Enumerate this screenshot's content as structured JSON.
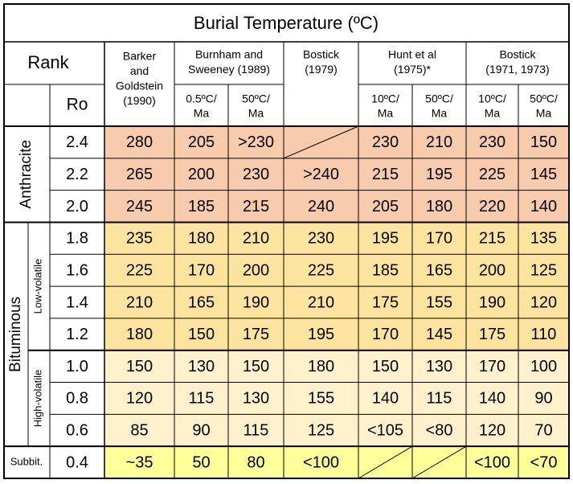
{
  "title": "Burial Temperature (ºC)",
  "header": {
    "rank": "Rank",
    "ro": "Ro",
    "columns": [
      {
        "lines": [
          "Barker",
          "and",
          "Goldstein",
          "(1990)"
        ],
        "sub": []
      },
      {
        "lines": [
          "Burnham and",
          "Sweeney (1989)"
        ],
        "sub": [
          [
            "0.5ºC/",
            "Ma"
          ],
          [
            "50ºC/",
            "Ma"
          ]
        ]
      },
      {
        "lines": [
          "Bostick",
          "(1979)"
        ],
        "sub": []
      },
      {
        "lines": [
          "Hunt et al",
          "(1975)*"
        ],
        "sub": [
          [
            "10ºC/",
            "Ma"
          ],
          [
            "50ºC/",
            "Ma"
          ]
        ]
      },
      {
        "lines": [
          "Bostick",
          "(1971, 1973)"
        ],
        "sub": [
          [
            "10ºC/",
            "Ma"
          ],
          [
            "50ºC/",
            "Ma"
          ]
        ]
      }
    ]
  },
  "row_groups": [
    "Anthracite",
    "Bituminous",
    "Low-volatile",
    "High-volatile",
    "Subbit."
  ],
  "rows": [
    {
      "ro": "2.4",
      "cells": [
        "280",
        "205",
        ">230",
        null,
        "230",
        "210",
        "230",
        "150"
      ]
    },
    {
      "ro": "2.2",
      "cells": [
        "265",
        "200",
        "230",
        ">240",
        "215",
        "195",
        "225",
        "145"
      ]
    },
    {
      "ro": "2.0",
      "cells": [
        "245",
        "185",
        "215",
        "240",
        "205",
        "180",
        "220",
        "140"
      ]
    },
    {
      "ro": "1.8",
      "cells": [
        "235",
        "180",
        "210",
        "230",
        "195",
        "170",
        "215",
        "135"
      ]
    },
    {
      "ro": "1.6",
      "cells": [
        "225",
        "170",
        "200",
        "225",
        "185",
        "165",
        "200",
        "125"
      ]
    },
    {
      "ro": "1.4",
      "cells": [
        "210",
        "165",
        "190",
        "210",
        "175",
        "155",
        "190",
        "120"
      ]
    },
    {
      "ro": "1.2",
      "cells": [
        "180",
        "150",
        "175",
        "195",
        "170",
        "145",
        "175",
        "110"
      ]
    },
    {
      "ro": "1.0",
      "cells": [
        "150",
        "130",
        "150",
        "180",
        "150",
        "130",
        "170",
        "100"
      ]
    },
    {
      "ro": "0.8",
      "cells": [
        "120",
        "115",
        "130",
        "155",
        "140",
        "115",
        "140",
        "90"
      ]
    },
    {
      "ro": "0.6",
      "cells": [
        "85",
        "90",
        "115",
        "125",
        "<105",
        "<80",
        "120",
        "70"
      ]
    },
    {
      "ro": "0.4",
      "cells": [
        "~35",
        "50",
        "80",
        "<100",
        null,
        null,
        "<100",
        "<70"
      ]
    }
  ]
}
